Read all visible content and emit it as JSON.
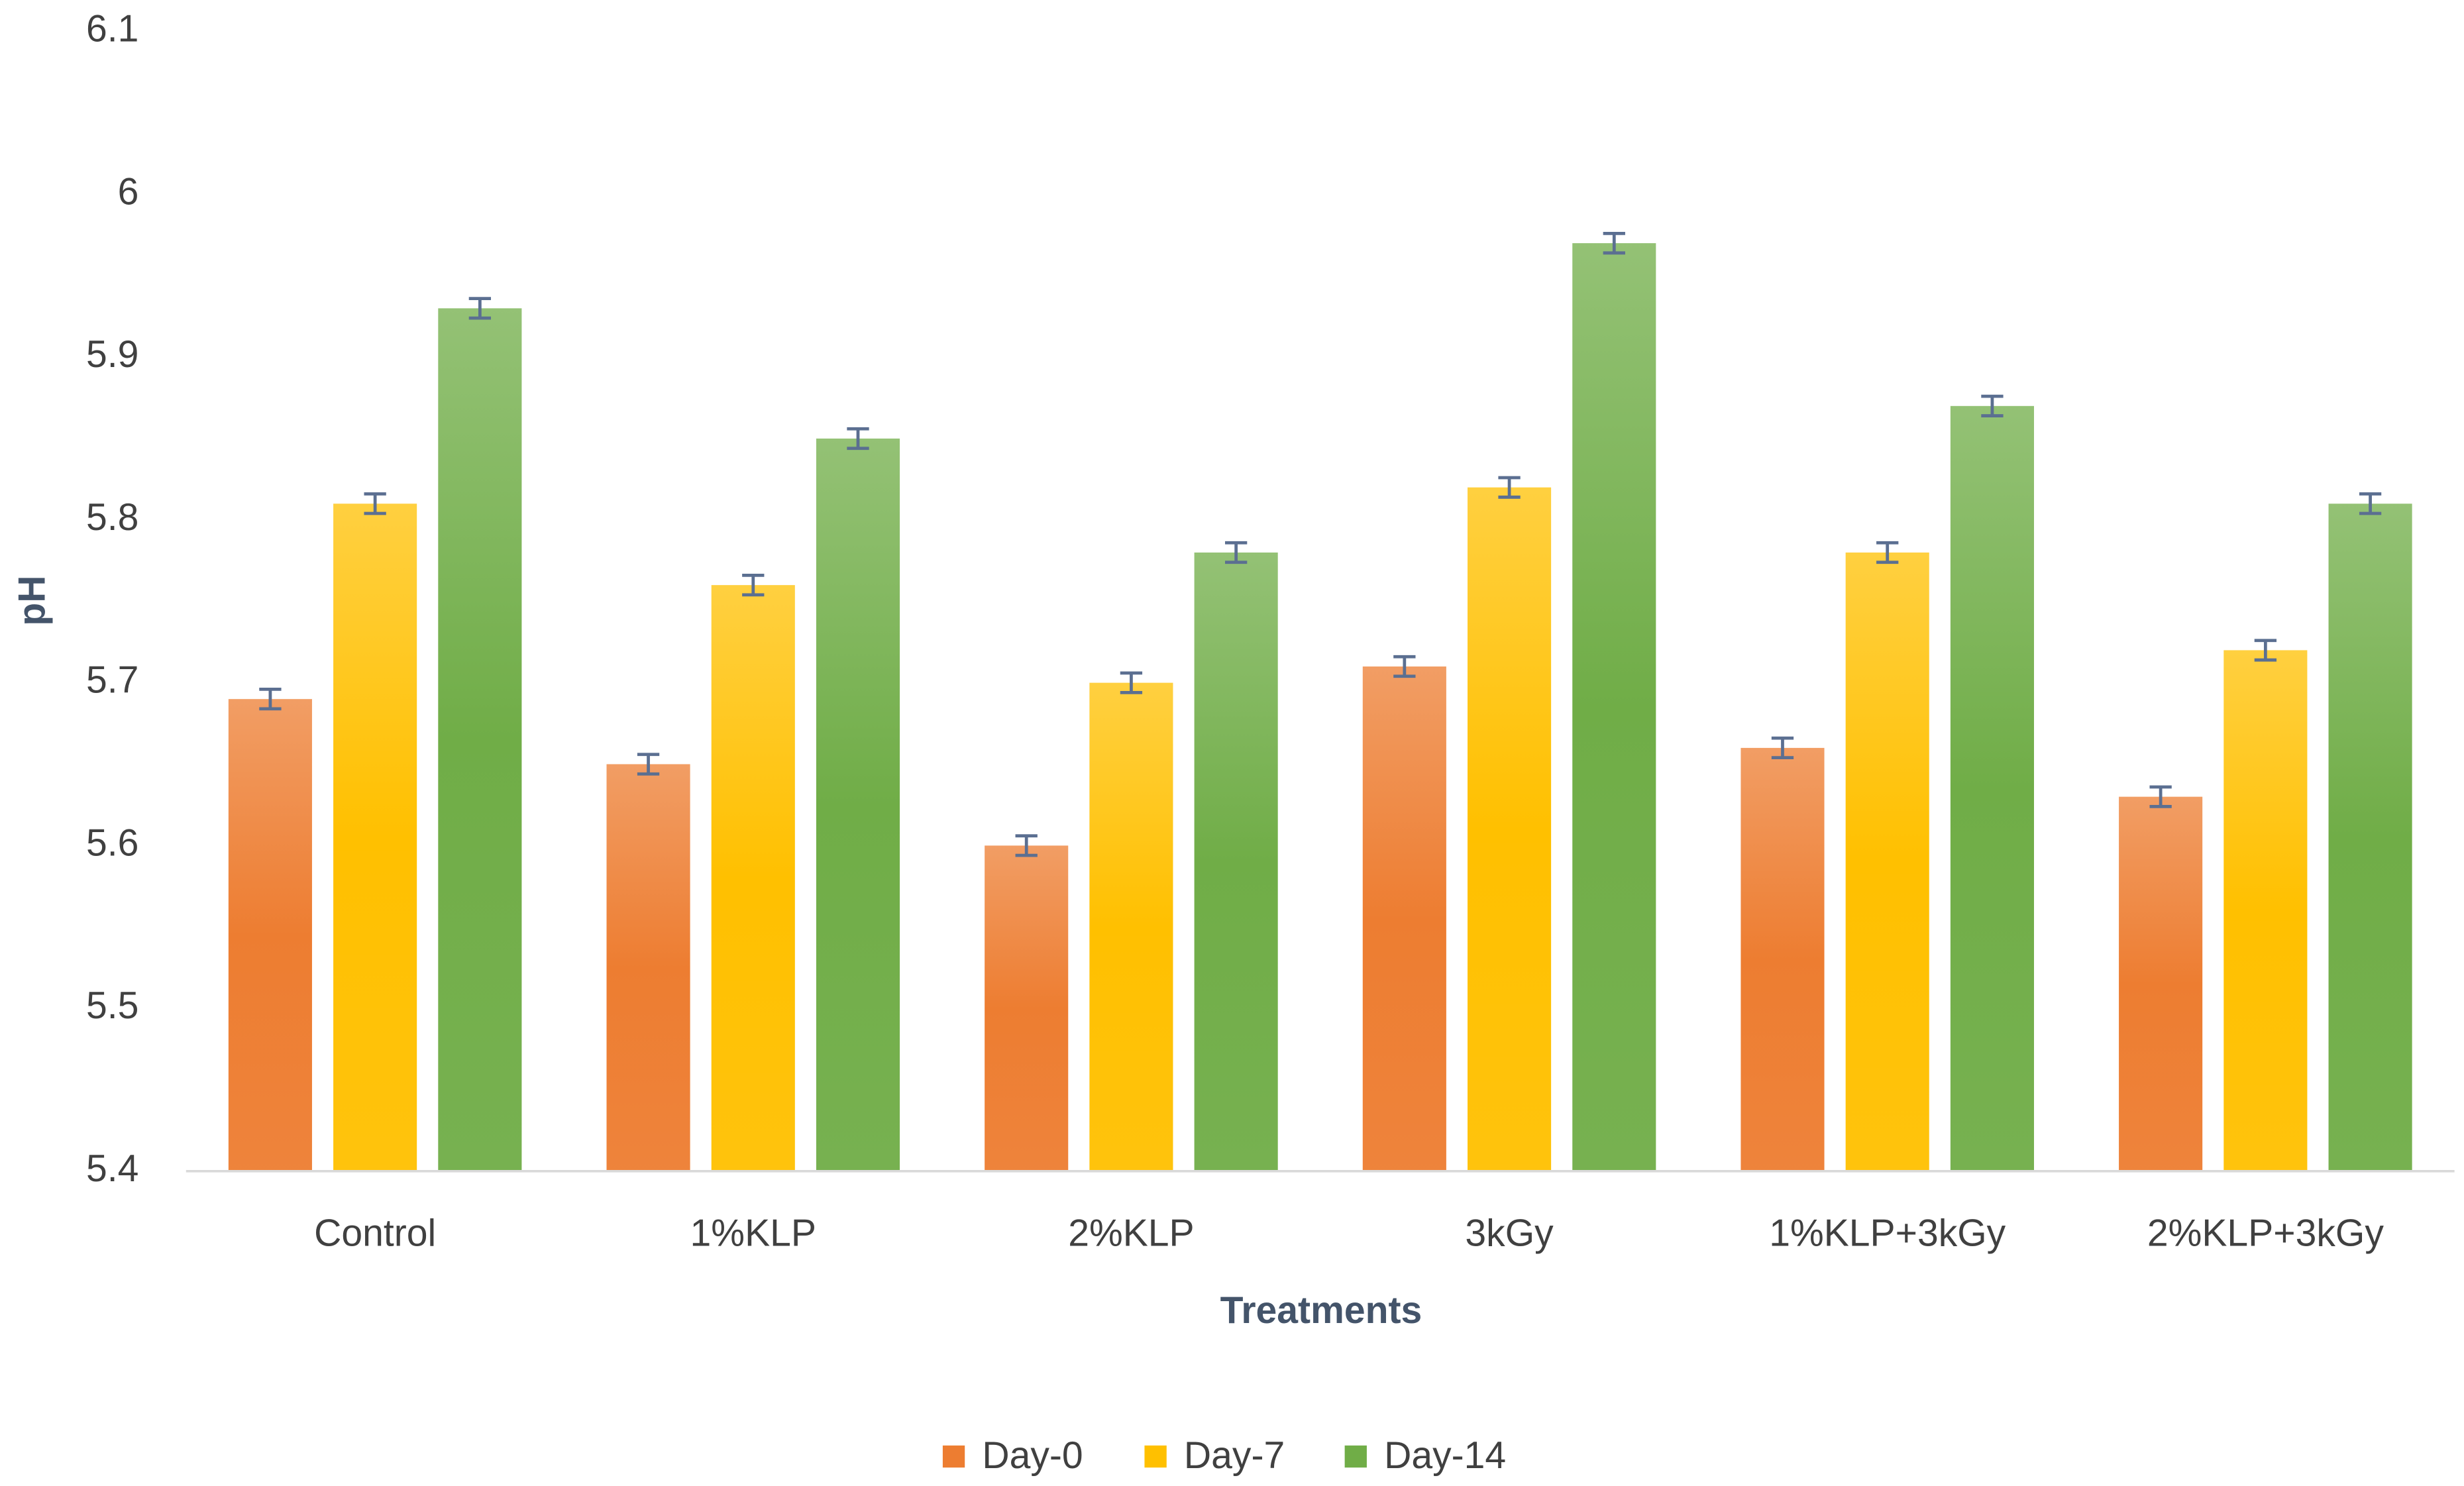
{
  "chart_data": {
    "type": "bar",
    "x_label": "Treatments",
    "y_label": "pH",
    "categories": [
      "Control",
      "1%KLP",
      "2%KLP",
      "3kGy",
      "1%KLP+3kGy",
      "2%KLP+3kGy"
    ],
    "series": [
      {
        "name": "Day-0",
        "color": "#ED7D31",
        "values": [
          5.69,
          5.65,
          5.6,
          5.71,
          5.66,
          5.63
        ],
        "errors": [
          0.006,
          0.006,
          0.006,
          0.006,
          0.006,
          0.006
        ]
      },
      {
        "name": "Day-7",
        "color": "#FFC000",
        "values": [
          5.81,
          5.76,
          5.7,
          5.82,
          5.78,
          5.72
        ],
        "errors": [
          0.006,
          0.006,
          0.006,
          0.006,
          0.006,
          0.006
        ]
      },
      {
        "name": "Day-14",
        "color": "#70AD47",
        "values": [
          5.93,
          5.85,
          5.78,
          5.97,
          5.87,
          5.81
        ],
        "errors": [
          0.006,
          0.006,
          0.006,
          0.006,
          0.006,
          0.006
        ]
      }
    ],
    "ylim": [
      5.4,
      6.1
    ],
    "yticks": [
      5.4,
      5.5,
      5.6,
      5.7,
      5.8,
      5.9,
      6,
      6.1
    ],
    "grid": false,
    "legend": "bottom",
    "error_color": "#5B6F91"
  }
}
